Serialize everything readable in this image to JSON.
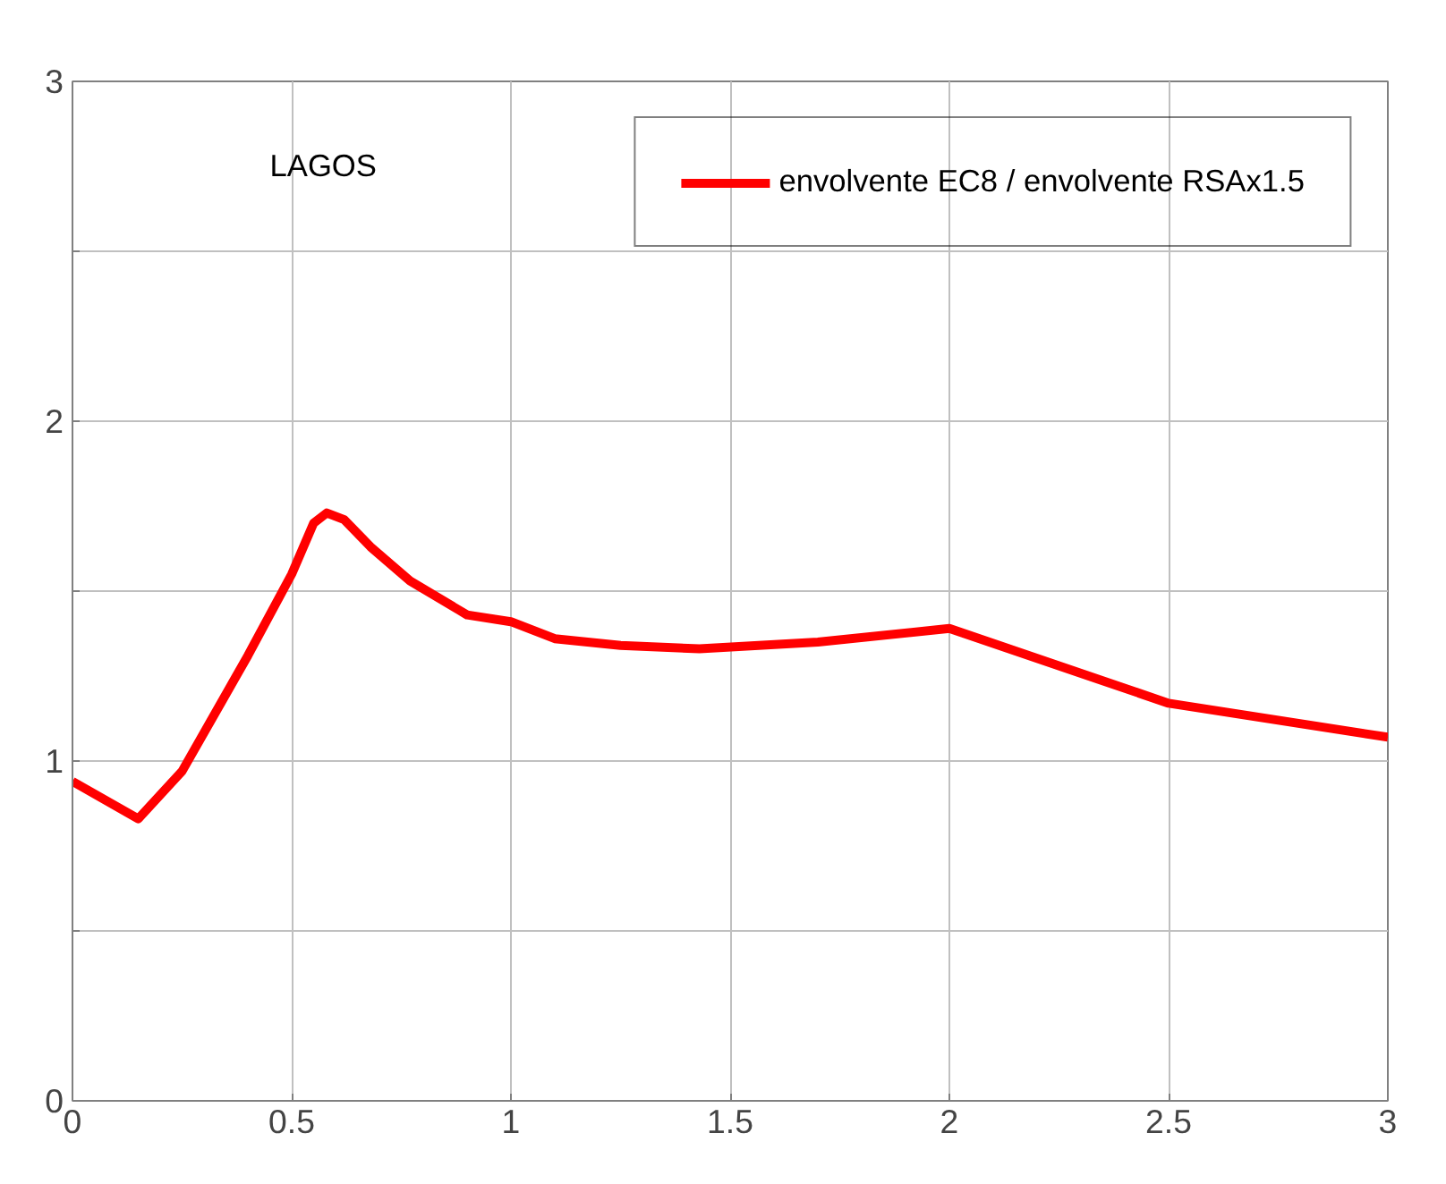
{
  "chart_data": {
    "type": "line",
    "annotations": [
      "LAGOS"
    ],
    "x": [
      0,
      0.15,
      0.25,
      0.4,
      0.5,
      0.55,
      0.58,
      0.62,
      0.68,
      0.77,
      0.9,
      1.0,
      1.1,
      1.25,
      1.43,
      1.7,
      2.0,
      2.5,
      3.0
    ],
    "series": [
      {
        "name": "envolvente EC8 / envolvente RSAx1.5",
        "color": "#ff0000",
        "values": [
          0.94,
          0.83,
          0.97,
          1.31,
          1.55,
          1.7,
          1.73,
          1.71,
          1.63,
          1.53,
          1.43,
          1.41,
          1.36,
          1.34,
          1.33,
          1.35,
          1.39,
          1.17,
          1.07
        ]
      }
    ],
    "xlim": [
      0,
      3
    ],
    "xticks": [
      0,
      0.5,
      1,
      1.5,
      2,
      2.5,
      3
    ],
    "ylim": [
      0,
      3
    ],
    "yticks": [
      0,
      {
        "value": 0.5,
        "label": null
      },
      1,
      {
        "value": 1.5,
        "label": null
      },
      2,
      {
        "value": 2.5,
        "label": null
      },
      3
    ],
    "grid": true,
    "legend": "top right",
    "marker": "none",
    "line_style": "solid"
  }
}
